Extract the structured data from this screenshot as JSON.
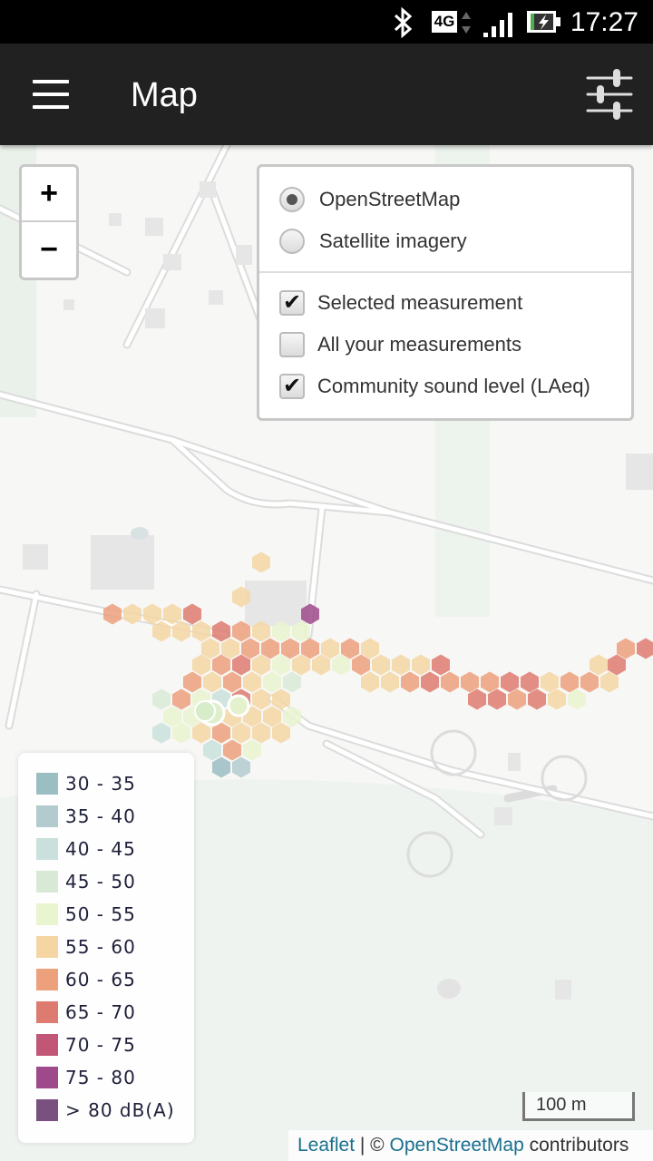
{
  "status_bar": {
    "time": "17:27",
    "network": "4G",
    "icons": [
      "bluetooth-icon",
      "4g-icon",
      "signal-icon",
      "battery-charging-icon"
    ]
  },
  "app_bar": {
    "title": "Map",
    "menu_icon": "hamburger-menu-icon",
    "settings_icon": "tune-sliders-icon"
  },
  "zoom": {
    "in_label": "+",
    "out_label": "−"
  },
  "layers": {
    "base_layers": [
      {
        "label": "OpenStreetMap",
        "selected": true
      },
      {
        "label": "Satellite imagery",
        "selected": false
      }
    ],
    "overlays": [
      {
        "label": "Selected measurement",
        "checked": true
      },
      {
        "label": "All your measurements",
        "checked": false
      },
      {
        "label": "Community sound level (LAeq)",
        "checked": true
      }
    ],
    "check_glyph": "✔"
  },
  "legend": {
    "items": [
      {
        "label": "30 - 35",
        "color": "#9bbec3"
      },
      {
        "label": "35 - 40",
        "color": "#b3cbcf"
      },
      {
        "label": "40 - 45",
        "color": "#c9e0dc"
      },
      {
        "label": "45 - 50",
        "color": "#d8ead6"
      },
      {
        "label": "50 - 55",
        "color": "#e9f5cf"
      },
      {
        "label": "55 - 60",
        "color": "#f5d6a3"
      },
      {
        "label": "60 - 65",
        "color": "#eda07c"
      },
      {
        "label": "65 - 70",
        "color": "#de7b70"
      },
      {
        "label": "70 - 75",
        "color": "#c15676"
      },
      {
        "label": "75 - 80",
        "color": "#9e4a8a"
      },
      {
        "label": "> 80 dB(A)",
        "color": "#7a5080"
      }
    ]
  },
  "scale": {
    "label": "100 m"
  },
  "attribution": {
    "leaflet": "Leaflet",
    "separator": " | © ",
    "osm": "OpenStreetMap",
    "suffix": " contributors"
  }
}
